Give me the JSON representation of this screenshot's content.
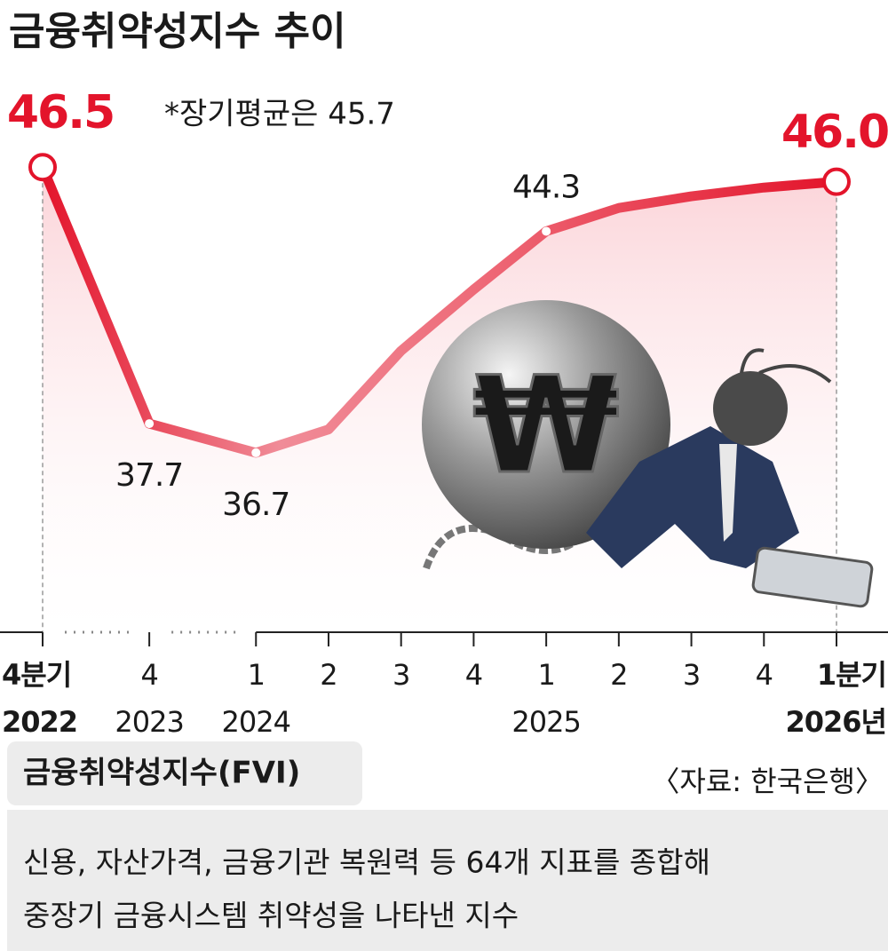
{
  "chart_data": {
    "type": "line",
    "title": "금융취약성지수 추이",
    "annotation": "*장기평균은 45.7",
    "source": "〈자료: 한국은행〉",
    "categories": [
      "4분기",
      "4",
      "1",
      "2",
      "3",
      "4",
      "1",
      "2",
      "3",
      "4",
      "1분기"
    ],
    "years": [
      "2022",
      "2023",
      "2024",
      null,
      null,
      null,
      "2025",
      null,
      null,
      null,
      "2026년"
    ],
    "axis_breaks": [
      0,
      1
    ],
    "values": [
      46.5,
      37.7,
      36.7,
      37.5,
      40.2,
      42.3,
      44.3,
      45.1,
      45.5,
      45.8,
      46.0
    ],
    "value_labels": [
      "46.5",
      "37.7",
      "36.7",
      null,
      null,
      null,
      "44.3",
      null,
      null,
      null,
      "46.0"
    ],
    "color": "#e3142b",
    "ylim": [
      31,
      48
    ],
    "illustration_symbol": "₩",
    "note": {
      "title": "금융취약성지수(FVI)",
      "lines": [
        "신용, 자산가격, 금융기관 복원력 등 64개 지표를 종합해",
        "중장기 금융시스템 취약성을 나타낸 지수"
      ]
    }
  }
}
